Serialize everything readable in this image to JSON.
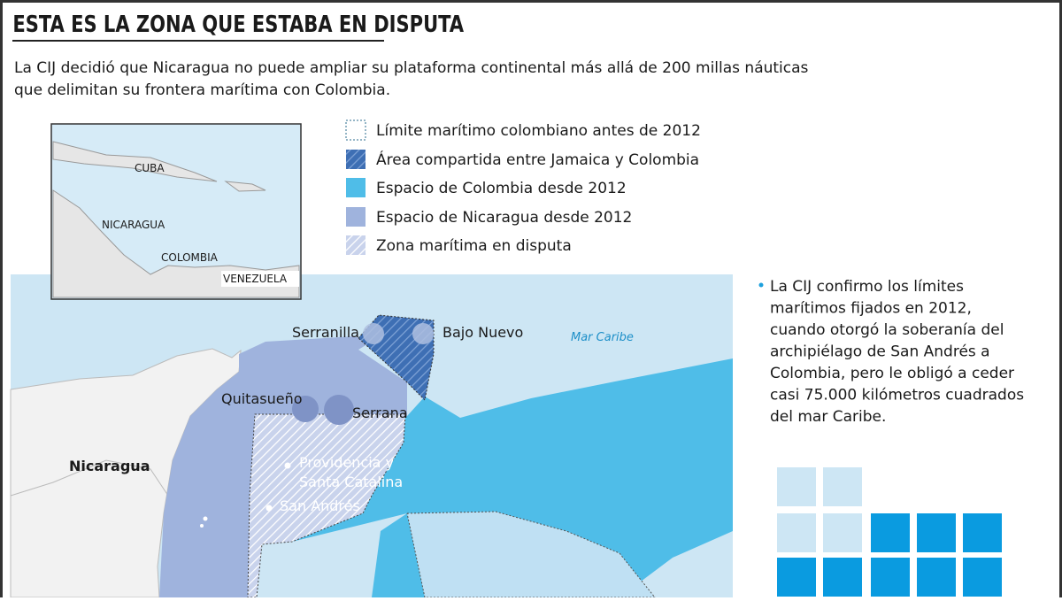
{
  "header": {
    "title": "ESTA ES LA ZONA QUE ESTABA EN DISPUTA",
    "subtitle": [
      "La CIJ decidió que Nicaragua no puede ampliar su plataforma continental más allá de 200 millas náuticas",
      "que delimitan su frontera marítima con Colombia."
    ]
  },
  "legend": [
    "Límite marítimo colombiano antes de 2012",
    "Área compartida entre Jamaica y Colombia",
    "Espacio de Colombia desde 2012",
    "Espacio de Nicaragua desde 2012",
    "Zona marítima en disputa"
  ],
  "inset": {
    "labels": [
      "CUBA",
      "NICARAGUA",
      "COLOMBIA",
      "VENEZUELA"
    ]
  },
  "map": {
    "labels": {
      "serranilla": "Serranilla",
      "bajo_nuevo": "Bajo Nuevo",
      "mar": "Mar Caribe",
      "quitasueno": "Quitasueño",
      "serrana": "Serrana",
      "providencia": [
        "Providencia y",
        "Santa Catalina"
      ],
      "san_andres": "San Andrés",
      "nicaragua": "Nicaragua"
    }
  },
  "note": [
    "La CIJ confirmo los límites",
    "marítimos fijados en 2012,",
    "cuando otorgó la soberanía del",
    "archipiélago de San Andrés a",
    "Colombia, pero le obligó a ceder",
    "casi 75.000 kilómetros cuadrados",
    "del mar Caribe."
  ]
}
